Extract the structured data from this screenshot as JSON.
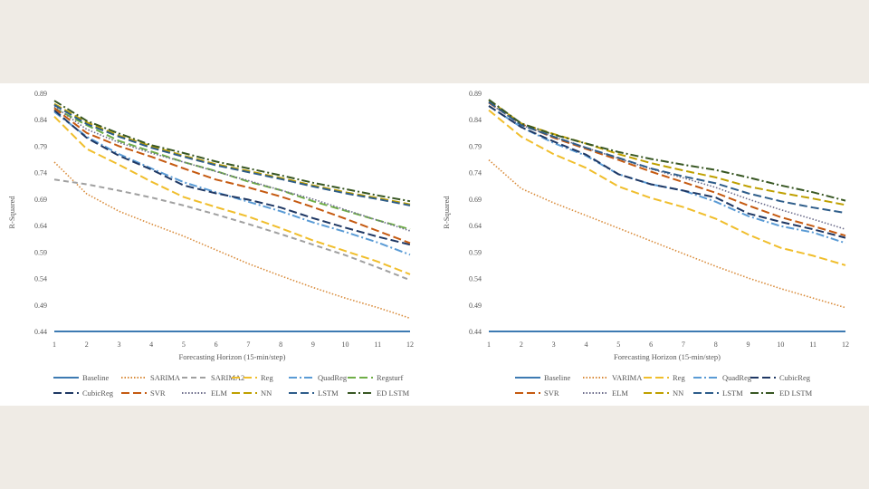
{
  "chart_data": [
    {
      "type": "line",
      "title": "",
      "xlabel": "Forecasting Horizon (15-min/step)",
      "ylabel": "R-Squared",
      "x": [
        1,
        2,
        3,
        4,
        5,
        6,
        7,
        8,
        9,
        10,
        11,
        12
      ],
      "yticks": [
        "0.44",
        "0.49",
        "0.54",
        "0.59",
        "0.64",
        "0.69",
        "0.74",
        "0.79",
        "0.84",
        "0.89"
      ],
      "ylim": [
        0.44,
        0.89
      ],
      "legend_position": "bottom",
      "series": [
        {
          "name": "Baseline",
          "color": "#3d7ab2",
          "dash": "solid",
          "values": [
            0.44,
            0.44,
            0.44,
            0.44,
            0.44,
            0.44,
            0.44,
            0.44,
            0.44,
            0.44,
            0.44,
            0.44
          ]
        },
        {
          "name": "SARIMA",
          "color": "#d98b3a",
          "dash": "dot",
          "values": [
            0.76,
            0.7,
            0.667,
            0.643,
            0.62,
            0.594,
            0.568,
            0.545,
            0.523,
            0.503,
            0.485,
            0.465
          ]
        },
        {
          "name": "SARIMA2",
          "color": "#a0a0a0",
          "dash": "dash",
          "values": [
            0.727,
            0.718,
            0.706,
            0.693,
            0.678,
            0.661,
            0.643,
            0.624,
            0.604,
            0.584,
            0.561,
            0.537
          ]
        },
        {
          "name": "Reg",
          "color": "#f0be2c",
          "dash": "longdash",
          "values": [
            0.846,
            0.785,
            0.755,
            0.723,
            0.694,
            0.675,
            0.657,
            0.635,
            0.612,
            0.592,
            0.572,
            0.548
          ]
        },
        {
          "name": "QuadReg",
          "color": "#5a9bd5",
          "dash": "dashdot",
          "values": [
            0.855,
            0.808,
            0.775,
            0.748,
            0.722,
            0.703,
            0.685,
            0.667,
            0.646,
            0.628,
            0.608,
            0.585
          ]
        },
        {
          "name": "Regsturf",
          "color": "#6fae47",
          "dash": "longdash",
          "values": [
            0.862,
            0.83,
            0.8,
            0.78,
            0.76,
            0.743,
            0.723,
            0.707,
            0.686,
            0.668,
            0.65,
            0.633
          ]
        },
        {
          "name": "CubicReg",
          "color": "#1f3864",
          "dash": "longdash",
          "values": [
            0.858,
            0.806,
            0.772,
            0.746,
            0.716,
            0.701,
            0.689,
            0.674,
            0.654,
            0.636,
            0.619,
            0.604
          ]
        },
        {
          "name": "SVR",
          "color": "#c55a11",
          "dash": "longdash",
          "values": [
            0.862,
            0.815,
            0.79,
            0.77,
            0.748,
            0.727,
            0.712,
            0.695,
            0.675,
            0.653,
            0.63,
            0.607
          ]
        },
        {
          "name": "ELM",
          "color": "#6b6b8a",
          "dash": "dot",
          "values": [
            0.865,
            0.822,
            0.797,
            0.777,
            0.76,
            0.742,
            0.725,
            0.707,
            0.69,
            0.67,
            0.65,
            0.63
          ]
        },
        {
          "name": "NN",
          "color": "#bfa000",
          "dash": "longdash",
          "values": [
            0.87,
            0.835,
            0.81,
            0.79,
            0.772,
            0.756,
            0.743,
            0.73,
            0.716,
            0.703,
            0.692,
            0.68
          ]
        },
        {
          "name": "LSTM",
          "color": "#2e5d8a",
          "dash": "longdash",
          "values": [
            0.868,
            0.832,
            0.808,
            0.787,
            0.77,
            0.754,
            0.741,
            0.728,
            0.714,
            0.701,
            0.69,
            0.678
          ]
        },
        {
          "name": "ED LSTM",
          "color": "#385723",
          "dash": "dashdot",
          "values": [
            0.876,
            0.838,
            0.814,
            0.792,
            0.777,
            0.761,
            0.748,
            0.735,
            0.721,
            0.709,
            0.697,
            0.686
          ]
        }
      ]
    },
    {
      "type": "line",
      "title": "",
      "xlabel": "Forecasting Horizon (15-min/step)",
      "ylabel": "R-Squared",
      "x": [
        1,
        2,
        3,
        4,
        5,
        6,
        7,
        8,
        9,
        10,
        11,
        12
      ],
      "yticks": [
        "0.44",
        "0.49",
        "0.54",
        "0.59",
        "0.64",
        "0.69",
        "0.74",
        "0.79",
        "0.84",
        "0.89"
      ],
      "ylim": [
        0.44,
        0.89
      ],
      "legend_position": "bottom",
      "series": [
        {
          "name": "Baseline",
          "color": "#3d7ab2",
          "dash": "solid",
          "values": [
            0.44,
            0.44,
            0.44,
            0.44,
            0.44,
            0.44,
            0.44,
            0.44,
            0.44,
            0.44,
            0.44,
            0.44
          ]
        },
        {
          "name": "VARIMA",
          "color": "#d98b3a",
          "dash": "dot",
          "values": [
            0.764,
            0.71,
            0.683,
            0.659,
            0.635,
            0.611,
            0.587,
            0.563,
            0.541,
            0.521,
            0.503,
            0.485
          ]
        },
        {
          "name": "Reg",
          "color": "#f0be2c",
          "dash": "longdash",
          "values": [
            0.858,
            0.808,
            0.775,
            0.749,
            0.714,
            0.692,
            0.675,
            0.653,
            0.623,
            0.598,
            0.583,
            0.565
          ]
        },
        {
          "name": "QuadReg",
          "color": "#5a9bd5",
          "dash": "dashdot",
          "values": [
            0.866,
            0.826,
            0.796,
            0.772,
            0.737,
            0.718,
            0.706,
            0.685,
            0.658,
            0.639,
            0.627,
            0.607
          ]
        },
        {
          "name": "CubicReg",
          "color": "#1f3864",
          "dash": "longdash",
          "values": [
            0.866,
            0.826,
            0.799,
            0.774,
            0.737,
            0.718,
            0.706,
            0.693,
            0.663,
            0.647,
            0.633,
            0.617
          ]
        },
        {
          "name": "SVR",
          "color": "#c55a11",
          "dash": "longdash",
          "values": [
            0.872,
            0.832,
            0.806,
            0.785,
            0.764,
            0.742,
            0.722,
            0.702,
            0.678,
            0.656,
            0.639,
            0.621
          ]
        },
        {
          "name": "ELM",
          "color": "#6b6b8a",
          "dash": "dot",
          "values": [
            0.872,
            0.83,
            0.808,
            0.787,
            0.767,
            0.747,
            0.73,
            0.712,
            0.69,
            0.67,
            0.652,
            0.633
          ]
        },
        {
          "name": "NN",
          "color": "#bfa000",
          "dash": "longdash",
          "values": [
            0.877,
            0.833,
            0.813,
            0.795,
            0.775,
            0.758,
            0.744,
            0.731,
            0.714,
            0.702,
            0.691,
            0.679
          ]
        },
        {
          "name": "LSTM",
          "color": "#2e5d8a",
          "dash": "longdash",
          "values": [
            0.874,
            0.83,
            0.808,
            0.787,
            0.768,
            0.748,
            0.733,
            0.72,
            0.701,
            0.686,
            0.674,
            0.664
          ]
        },
        {
          "name": "ED LSTM",
          "color": "#385723",
          "dash": "dashdot",
          "values": [
            0.878,
            0.833,
            0.812,
            0.795,
            0.779,
            0.766,
            0.755,
            0.745,
            0.731,
            0.716,
            0.703,
            0.687
          ]
        }
      ]
    }
  ]
}
